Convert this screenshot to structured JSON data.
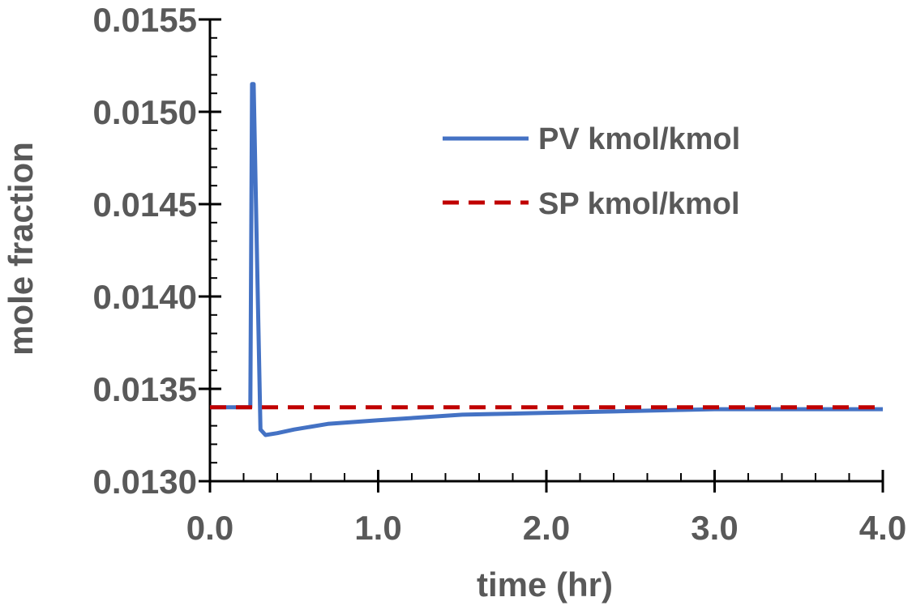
{
  "chart_data": {
    "type": "line",
    "title": "",
    "xlabel": "time (hr)",
    "ylabel": "mole fraction",
    "xlim": [
      0.0,
      4.0
    ],
    "ylim": [
      0.013,
      0.0155
    ],
    "x_ticks": [
      "0.0",
      "1.0",
      "2.0",
      "3.0",
      "4.0"
    ],
    "y_ticks": [
      "0.0130",
      "0.0135",
      "0.0140",
      "0.0145",
      "0.0150",
      "0.0155"
    ],
    "x_tick_values": [
      0.0,
      1.0,
      2.0,
      3.0,
      4.0
    ],
    "y_tick_values": [
      0.013,
      0.0135,
      0.014,
      0.0145,
      0.015,
      0.0155
    ],
    "grid": false,
    "legend_position": "top-right",
    "series": [
      {
        "name": "PV kmol/kmol",
        "color": "#4472C4",
        "style": "solid",
        "x": [
          0.0,
          0.24,
          0.25,
          0.26,
          0.28,
          0.3,
          0.33,
          0.4,
          0.5,
          0.7,
          1.0,
          1.5,
          2.0,
          2.5,
          3.0,
          3.5,
          4.0
        ],
        "y": [
          0.0134,
          0.0134,
          0.01515,
          0.01515,
          0.0142,
          0.01328,
          0.01325,
          0.01326,
          0.01328,
          0.01331,
          0.01333,
          0.01336,
          0.01337,
          0.01338,
          0.01339,
          0.01339,
          0.01339
        ]
      },
      {
        "name": "SP kmol/kmol",
        "color": "#C00000",
        "style": "dashed",
        "x": [
          0.0,
          4.0
        ],
        "y": [
          0.0134,
          0.0134
        ]
      }
    ]
  }
}
